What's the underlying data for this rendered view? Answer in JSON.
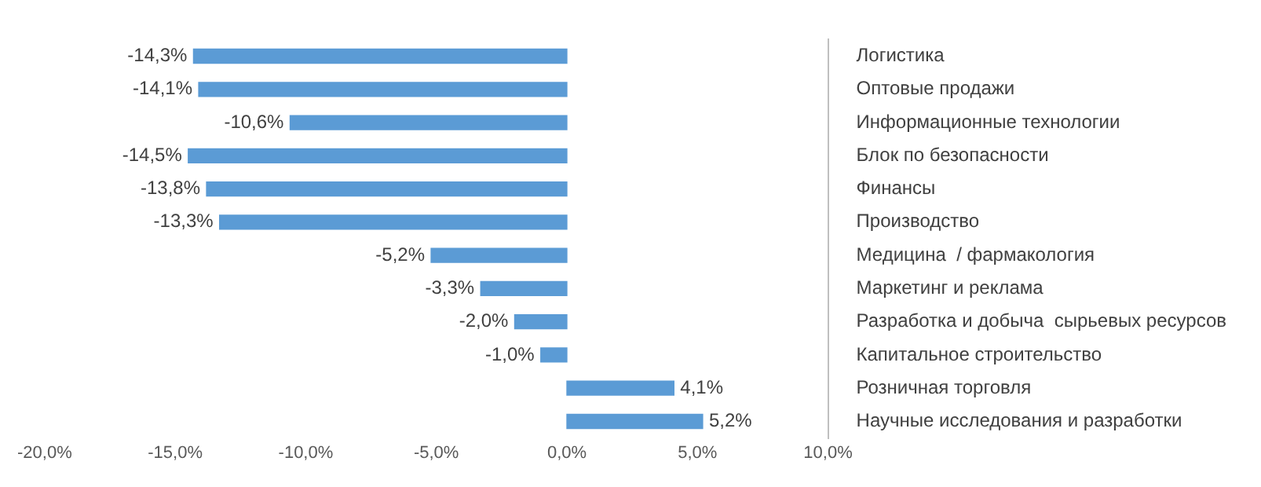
{
  "chart_data": {
    "type": "bar",
    "orientation": "horizontal",
    "categories": [
      "Логистика",
      "Оптовые продажи",
      "Информационные технологии",
      "Блок по безопасности",
      "Финансы",
      "Производство",
      "Медицина  / фармакология",
      "Маркетинг и реклама",
      "Разработка и добыча  сырьевых ресурсов",
      "Капитальное строительство",
      "Розничная торговля",
      "Научные исследования и разработки"
    ],
    "values": [
      -14.3,
      -14.1,
      -10.6,
      -14.5,
      -13.8,
      -13.3,
      -5.2,
      -3.3,
      -2.0,
      -1.0,
      4.1,
      5.2
    ],
    "value_labels": [
      "-14,3%",
      "-14,1%",
      "-10,6%",
      "-14,5%",
      "-13,8%",
      "-13,3%",
      "-5,2%",
      "-3,3%",
      "-2,0%",
      "-1,0%",
      "4,1%",
      "5,2%"
    ],
    "color": "#5b9bd5",
    "xlim": [
      -20,
      10
    ],
    "xticks": [
      {
        "value": -20,
        "label": "-20,0%"
      },
      {
        "value": -15,
        "label": "-15,0%"
      },
      {
        "value": -10,
        "label": "-10,0%"
      },
      {
        "value": -5,
        "label": "-5,0%"
      },
      {
        "value": 0,
        "label": "0,0%"
      },
      {
        "value": 5,
        "label": "5,0%"
      },
      {
        "value": 10,
        "label": "10,0%"
      }
    ],
    "grid": false,
    "legend": false
  }
}
